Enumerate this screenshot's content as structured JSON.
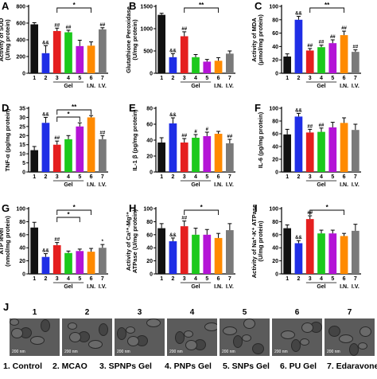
{
  "colors": {
    "g1": "#111111",
    "g2": "#1f2ee6",
    "g3": "#e51f1f",
    "g4": "#1cc91c",
    "g5": "#b414d6",
    "g6": "#ff8a00",
    "g7": "#7a7a7a"
  },
  "chart_data": [
    {
      "type": "bar",
      "panel": "A",
      "ylabel": "Activity of SOD\n(U/mg protein)",
      "ylim": [
        0,
        800
      ],
      "yticks": [
        0,
        200,
        400,
        600,
        800
      ],
      "categories": [
        "1",
        "2",
        "3",
        "4",
        "5",
        "6",
        "7"
      ],
      "values": [
        585,
        240,
        505,
        490,
        325,
        330,
        525
      ],
      "errors": [
        20,
        90,
        35,
        25,
        70,
        45,
        20
      ],
      "marks": [
        "",
        "&&",
        "##",
        "##",
        "",
        "",
        "##"
      ],
      "sig": [
        {
          "from": 3,
          "to": 6,
          "label": "*"
        }
      ],
      "groups": [
        {
          "label": "Gel",
          "from": 3,
          "to": 5
        },
        {
          "label": "I.N.",
          "from": 6,
          "to": 6
        },
        {
          "label": "I.V.",
          "from": 7,
          "to": 7
        }
      ]
    },
    {
      "type": "bar",
      "panel": "B",
      "ylabel": "Glutathione Peroxidase\n(U/mg protein)",
      "ylim": [
        0,
        1500
      ],
      "yticks": [
        0,
        500,
        1000,
        1500
      ],
      "categories": [
        "1",
        "2",
        "3",
        "4",
        "5",
        "6",
        "7"
      ],
      "values": [
        1310,
        360,
        830,
        360,
        260,
        280,
        440
      ],
      "errors": [
        35,
        80,
        100,
        60,
        50,
        70,
        60
      ],
      "marks": [
        "",
        "&&",
        "##",
        "",
        "",
        "",
        ""
      ],
      "sig": [
        {
          "from": 3,
          "to": 6,
          "label": "**"
        }
      ],
      "groups": [
        {
          "label": "Gel",
          "from": 3,
          "to": 5
        },
        {
          "label": "I.N.",
          "from": 6,
          "to": 6
        },
        {
          "label": "I.V.",
          "from": 7,
          "to": 7
        }
      ]
    },
    {
      "type": "bar",
      "panel": "C",
      "ylabel": "Activity of MDA\n(μmol/mg protein)",
      "ylim": [
        0,
        100
      ],
      "yticks": [
        0,
        20,
        40,
        60,
        80,
        100
      ],
      "categories": [
        "1",
        "2",
        "3",
        "4",
        "5",
        "6",
        "7"
      ],
      "values": [
        25,
        80,
        34,
        39,
        45,
        57,
        32
      ],
      "errors": [
        4,
        5,
        3,
        3,
        5,
        6,
        3
      ],
      "marks": [
        "",
        "&&",
        "##",
        "##",
        "##",
        "##",
        "##"
      ],
      "sig": [
        {
          "from": 3,
          "to": 6,
          "label": "**"
        }
      ],
      "groups": [
        {
          "label": "Gel",
          "from": 3,
          "to": 5
        },
        {
          "label": "I.N.",
          "from": 6,
          "to": 6
        },
        {
          "label": "I.V.",
          "from": 7,
          "to": 7
        }
      ]
    },
    {
      "type": "bar",
      "panel": "D",
      "ylabel": "TNF-α (pg/mg protein)",
      "ylim": [
        0,
        35
      ],
      "yticks": [
        0,
        5,
        10,
        15,
        20,
        25,
        30,
        35
      ],
      "categories": [
        "1",
        "2",
        "3",
        "4",
        "5",
        "6",
        "7"
      ],
      "values": [
        12,
        27,
        15,
        18,
        25,
        30,
        18
      ],
      "errors": [
        2,
        3,
        2,
        2,
        2,
        1,
        2
      ],
      "marks": [
        "",
        "&&",
        "##",
        "",
        "",
        "",
        "##"
      ],
      "sig": [
        {
          "from": 3,
          "to": 6,
          "label": "**"
        },
        {
          "from": 3,
          "to": 5,
          "label": "*"
        }
      ],
      "groups": [
        {
          "label": "Gel",
          "from": 3,
          "to": 5
        },
        {
          "label": "I.N.",
          "from": 6,
          "to": 6
        },
        {
          "label": "I.V.",
          "from": 7,
          "to": 7
        }
      ]
    },
    {
      "type": "bar",
      "panel": "E",
      "ylabel": "IL-1 β (pg/mg protein)",
      "ylim": [
        0,
        80
      ],
      "yticks": [
        0,
        20,
        40,
        60,
        80
      ],
      "categories": [
        "1",
        "2",
        "3",
        "4",
        "5",
        "6",
        "7"
      ],
      "values": [
        37,
        61,
        37,
        43,
        45,
        48,
        36
      ],
      "errors": [
        6,
        7,
        5,
        4,
        5,
        3,
        5
      ],
      "marks": [
        "",
        "&&",
        "##",
        "#",
        "#",
        "",
        "##"
      ],
      "sig": [],
      "groups": [
        {
          "label": "Gel",
          "from": 3,
          "to": 5
        },
        {
          "label": "I.N.",
          "from": 6,
          "to": 6
        },
        {
          "label": "I.V.",
          "from": 7,
          "to": 7
        }
      ]
    },
    {
      "type": "bar",
      "panel": "F",
      "ylabel": "IL-6 (pg/mg protein)",
      "ylim": [
        0,
        100
      ],
      "yticks": [
        0,
        20,
        40,
        60,
        80,
        100
      ],
      "categories": [
        "1",
        "2",
        "3",
        "4",
        "5",
        "6",
        "7"
      ],
      "values": [
        59,
        87,
        62,
        63,
        70,
        77,
        66
      ],
      "errors": [
        8,
        5,
        5,
        6,
        8,
        8,
        9
      ],
      "marks": [
        "",
        "&&",
        "##",
        "##",
        "",
        "",
        ""
      ],
      "sig": [],
      "groups": [
        {
          "label": "Gel",
          "from": 3,
          "to": 5
        },
        {
          "label": "I.N.",
          "from": 6,
          "to": 6
        },
        {
          "label": "I.V.",
          "from": 7,
          "to": 7
        }
      ]
    },
    {
      "type": "bar",
      "panel": "G",
      "ylabel": "ATP level\n(nmol/mg protein)",
      "ylim": [
        0,
        100
      ],
      "yticks": [
        0,
        20,
        40,
        60,
        80,
        100
      ],
      "categories": [
        "1",
        "2",
        "3",
        "4",
        "5",
        "6",
        "7"
      ],
      "values": [
        71,
        26,
        44,
        32,
        35,
        34,
        40
      ],
      "errors": [
        8,
        5,
        4,
        3,
        3,
        5,
        5
      ],
      "marks": [
        "",
        "&&",
        "##",
        "",
        "",
        "",
        "*"
      ],
      "sig": [
        {
          "from": 3,
          "to": 6,
          "label": "*"
        },
        {
          "from": 3,
          "to": 5,
          "label": "*"
        }
      ],
      "groups": [
        {
          "label": "Gel",
          "from": 3,
          "to": 5
        },
        {
          "label": "I.N.",
          "from": 6,
          "to": 6
        },
        {
          "label": "I.V.",
          "from": 7,
          "to": 7
        }
      ]
    },
    {
      "type": "bar",
      "panel": "H",
      "ylabel": "Activity of Ca²⁺-Mg²⁺\nATPase (U/mg protein)",
      "ylim": [
        0,
        100
      ],
      "yticks": [
        0,
        20,
        40,
        60,
        80,
        100
      ],
      "categories": [
        "1",
        "2",
        "3",
        "4",
        "5",
        "6",
        "7"
      ],
      "values": [
        70,
        50,
        73,
        60,
        60,
        55,
        67
      ],
      "errors": [
        7,
        5,
        8,
        10,
        8,
        7,
        10
      ],
      "marks": [
        "",
        "&&",
        "##",
        "",
        "",
        "",
        ""
      ],
      "sig": [
        {
          "from": 3,
          "to": 6,
          "label": "*"
        }
      ],
      "groups": [
        {
          "label": "Gel",
          "from": 3,
          "to": 5
        },
        {
          "label": "I.N.",
          "from": 6,
          "to": 6
        },
        {
          "label": "I.V.",
          "from": 7,
          "to": 7
        }
      ]
    },
    {
      "type": "bar",
      "panel": "I",
      "ylabel": "Activity of Na⁺-K⁺ ATPase\n(U/mg protein)",
      "ylim": [
        0,
        100
      ],
      "yticks": [
        0,
        20,
        40,
        60,
        80,
        100
      ],
      "categories": [
        "1",
        "2",
        "3",
        "4",
        "5",
        "6",
        "7"
      ],
      "values": [
        70,
        47,
        84,
        62,
        62,
        58,
        66
      ],
      "errors": [
        5,
        4,
        5,
        5,
        5,
        4,
        10
      ],
      "marks": [
        "",
        "&&",
        "##",
        "",
        "",
        "",
        ""
      ],
      "sig": [
        {
          "from": 3,
          "to": 6,
          "label": "*"
        }
      ],
      "groups": [
        {
          "label": "Gel",
          "from": 3,
          "to": 5
        },
        {
          "label": "I.N.",
          "from": 6,
          "to": 6
        },
        {
          "label": "I.V.",
          "from": 7,
          "to": 7
        }
      ]
    }
  ],
  "tem": {
    "panel_label": "J",
    "images": [
      {
        "num": "1",
        "scale": "200 nm"
      },
      {
        "num": "2",
        "scale": "200 nm"
      },
      {
        "num": "3",
        "scale": "200 nm"
      },
      {
        "num": "4",
        "scale": "200 nm"
      },
      {
        "num": "5",
        "scale": "200 nm"
      },
      {
        "num": "6",
        "scale": "200 nm"
      },
      {
        "num": "7",
        "scale": "200 nm"
      }
    ]
  },
  "legend": [
    "1. Control",
    "2. MCAO",
    "3. SPNPs Gel",
    "4. PNPs Gel",
    "5. SNPs Gel",
    "6. PU Gel",
    "7. Edaravone"
  ]
}
